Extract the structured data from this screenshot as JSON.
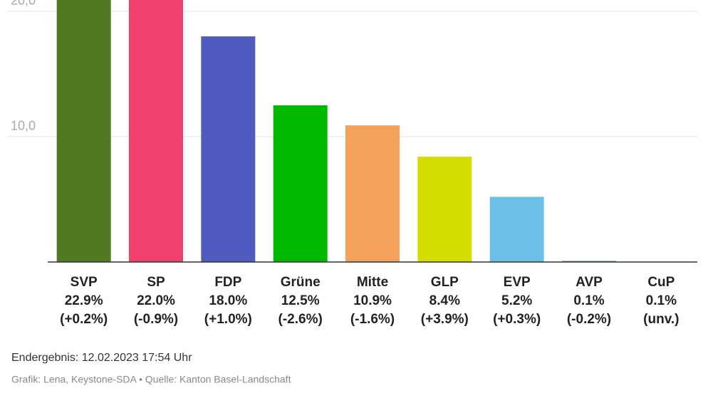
{
  "chart_data": {
    "type": "bar",
    "categories": [
      "SVP",
      "SP",
      "FDP",
      "Grüne",
      "Mitte",
      "GLP",
      "EVP",
      "AVP",
      "CuP"
    ],
    "values": [
      22.9,
      22.0,
      18.0,
      12.5,
      10.9,
      8.4,
      5.2,
      0.1,
      0.1
    ],
    "value_labels": [
      "22.9%",
      "22.0%",
      "18.0%",
      "12.5%",
      "10.9%",
      "8.4%",
      "5.2%",
      "0.1%",
      "0.1%"
    ],
    "changes": [
      "(+0.2%)",
      "(-0.9%)",
      "(+1.0%)",
      "(-2.6%)",
      "(-1.6%)",
      "(+3.9%)",
      "(+0.3%)",
      "(-0.2%)",
      "(unv.)"
    ],
    "colors": [
      "#4f7a21",
      "#f0406b",
      "#4f5bbf",
      "#00b800",
      "#f4a15c",
      "#d4dc00",
      "#6cc0e8",
      "#8fa6cc",
      "#ffffff"
    ],
    "ylim": [
      0,
      20.9
    ],
    "yticks": [
      {
        "value": 10,
        "label": "10,0"
      },
      {
        "value": 20,
        "label": "20,0"
      }
    ],
    "grid": true,
    "footer": "Endergebnis: 12.02.2023 17:54 Uhr",
    "source": "Grafik: Lena, Keystone-SDA • Quelle: Kanton Basel-Landschaft"
  }
}
